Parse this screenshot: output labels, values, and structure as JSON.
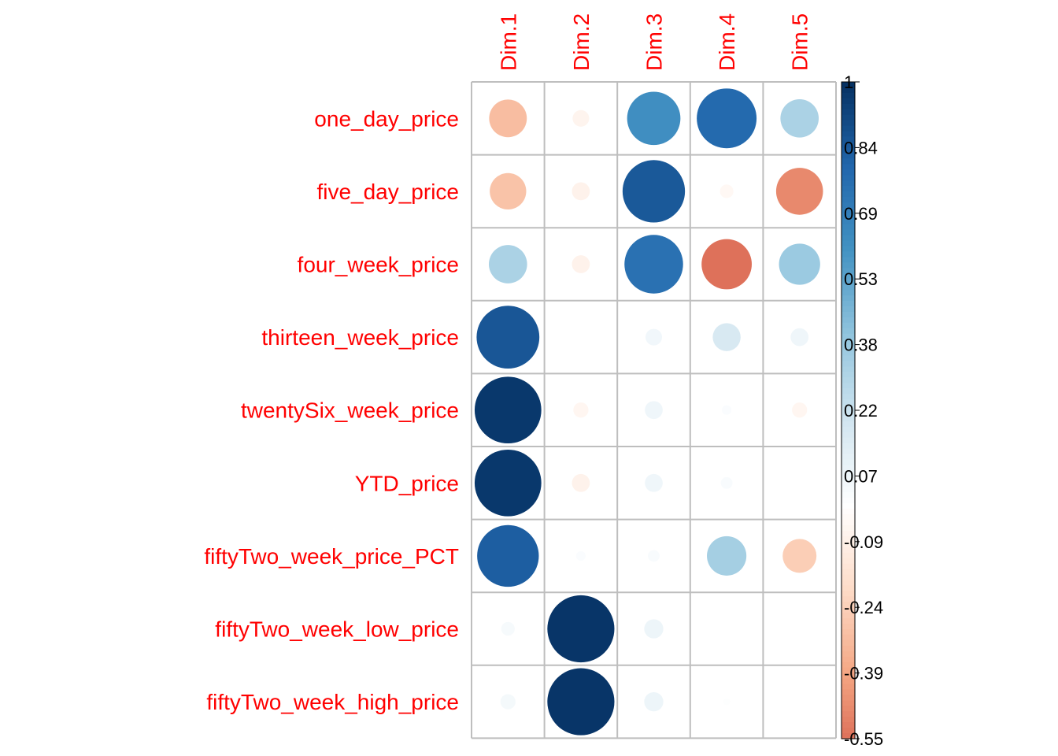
{
  "chart_data": {
    "type": "heatmap",
    "style": "corrplot-circle",
    "row_labels": [
      "one_day_price",
      "five_day_price",
      "four_week_price",
      "thirteen_week_price",
      "twentySix_week_price",
      "YTD_price",
      "fiftyTwo_week_price_PCT",
      "fiftyTwo_week_low_price",
      "fiftyTwo_week_high_price"
    ],
    "col_labels": [
      "Dim.1",
      "Dim.2",
      "Dim.3",
      "Dim.4",
      "Dim.5"
    ],
    "values": [
      [
        -0.31,
        -0.06,
        0.62,
        0.78,
        0.32
      ],
      [
        -0.29,
        -0.07,
        0.85,
        -0.04,
        -0.48
      ],
      [
        0.32,
        -0.07,
        0.75,
        -0.55,
        0.37
      ],
      [
        0.86,
        0.0,
        0.06,
        0.17,
        0.07
      ],
      [
        0.97,
        -0.05,
        0.07,
        0.02,
        -0.05
      ],
      [
        0.97,
        -0.07,
        0.07,
        0.03,
        0.0
      ],
      [
        0.83,
        0.02,
        0.03,
        0.34,
        -0.25
      ],
      [
        0.04,
        0.98,
        0.08,
        0.0,
        0.0
      ],
      [
        0.05,
        0.98,
        0.08,
        0.01,
        0.0
      ]
    ],
    "colorbar": {
      "ticks": [
        "1",
        "0.84",
        "0.69",
        "0.53",
        "0.38",
        "0.22",
        "0.07",
        "-0.09",
        "-0.24",
        "-0.39",
        "-0.55"
      ],
      "min": -0.55,
      "max": 1,
      "low_color": "#67001f",
      "mid_color": "#ffffff",
      "high_color": "#053061"
    },
    "label_color": "#ff0000",
    "grid": true
  }
}
